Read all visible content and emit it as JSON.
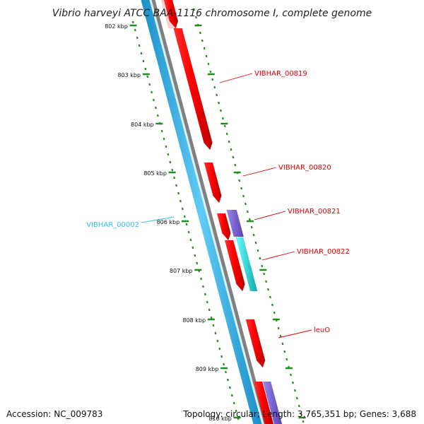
{
  "title": "Vibrio harveyi ATCC BAA-1116 chromosome I, complete genome",
  "accession": "Accession: NC_009783",
  "summary": "Topology: circular; Length: 3,765,351 bp; Genes: 3,688",
  "ticks": [
    "802 kbp",
    "803 kbp",
    "804 kbp",
    "805 kbp",
    "806 kbp",
    "807 kbp",
    "808 kbp",
    "809 kbp",
    "810 kbp"
  ],
  "genes": [
    {
      "name": "VIBHAR_00819",
      "strand": "forward",
      "color": "#dd0000"
    },
    {
      "name": "VIBHAR_00820",
      "strand": "forward",
      "color": "#dd0000"
    },
    {
      "name": "VIBHAR_00821",
      "strand": "forward",
      "color": "#dd0000"
    },
    {
      "name": "VIBHAR_00822",
      "strand": "forward",
      "color": "#dd0000"
    },
    {
      "name": "leuO",
      "strand": "forward",
      "color": "#dd0000"
    },
    {
      "name": "VIBHAR_00002",
      "strand": "reverse",
      "color": "#33bbee"
    }
  ],
  "colors": {
    "cds_forward": "#ff0000",
    "cds_rna": "#7d5fd1",
    "cds_cyan": "#22dddd",
    "backbone_gray": "#808080",
    "backbone_blue": "#3fb7ea",
    "tick_green": "#228b22"
  }
}
